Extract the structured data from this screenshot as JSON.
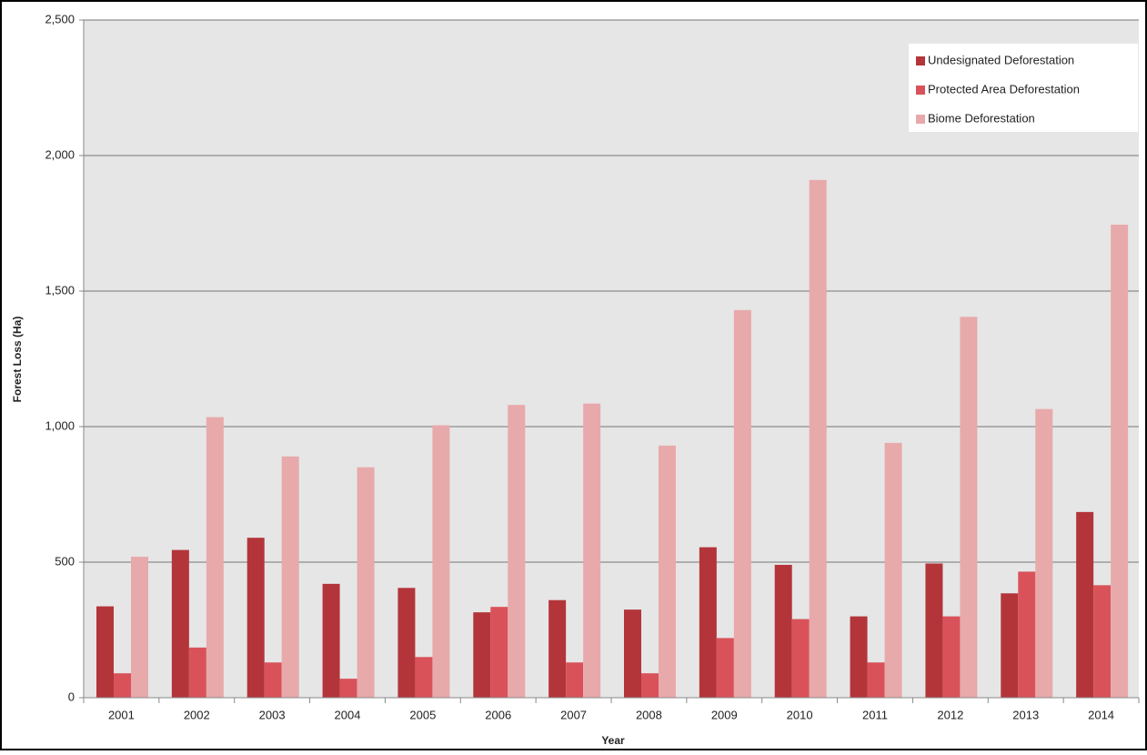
{
  "chart_data": {
    "type": "bar",
    "categories": [
      "2001",
      "2002",
      "2003",
      "2004",
      "2005",
      "2006",
      "2007",
      "2008",
      "2009",
      "2010",
      "2011",
      "2012",
      "2013",
      "2014"
    ],
    "series": [
      {
        "name": "Undesignated Deforestation",
        "color": "#b3353a",
        "values": [
          337,
          545,
          590,
          420,
          405,
          315,
          360,
          325,
          555,
          490,
          300,
          495,
          385,
          685
        ]
      },
      {
        "name": "Protected Area Deforestation",
        "color": "#d9525a",
        "values": [
          90,
          185,
          130,
          70,
          150,
          335,
          130,
          90,
          220,
          290,
          130,
          300,
          465,
          415
        ]
      },
      {
        "name": "Biome Deforestation",
        "color": "#e8a9ab",
        "values": [
          520,
          1035,
          890,
          850,
          1005,
          1080,
          1085,
          930,
          1430,
          1910,
          940,
          1405,
          1065,
          1745
        ]
      }
    ],
    "ylim": [
      0,
      2500
    ],
    "yticks": [
      0,
      500,
      {
        "value": 1000,
        "label": "1,000"
      },
      {
        "value": 1500,
        "label": "1,500"
      },
      {
        "value": 2000,
        "label": "2,000"
      },
      {
        "value": 2500,
        "label": "2,500"
      }
    ],
    "x_label": "Year",
    "y_label": "Forest Loss (Ha)",
    "grid": true,
    "legend": "top-right"
  }
}
